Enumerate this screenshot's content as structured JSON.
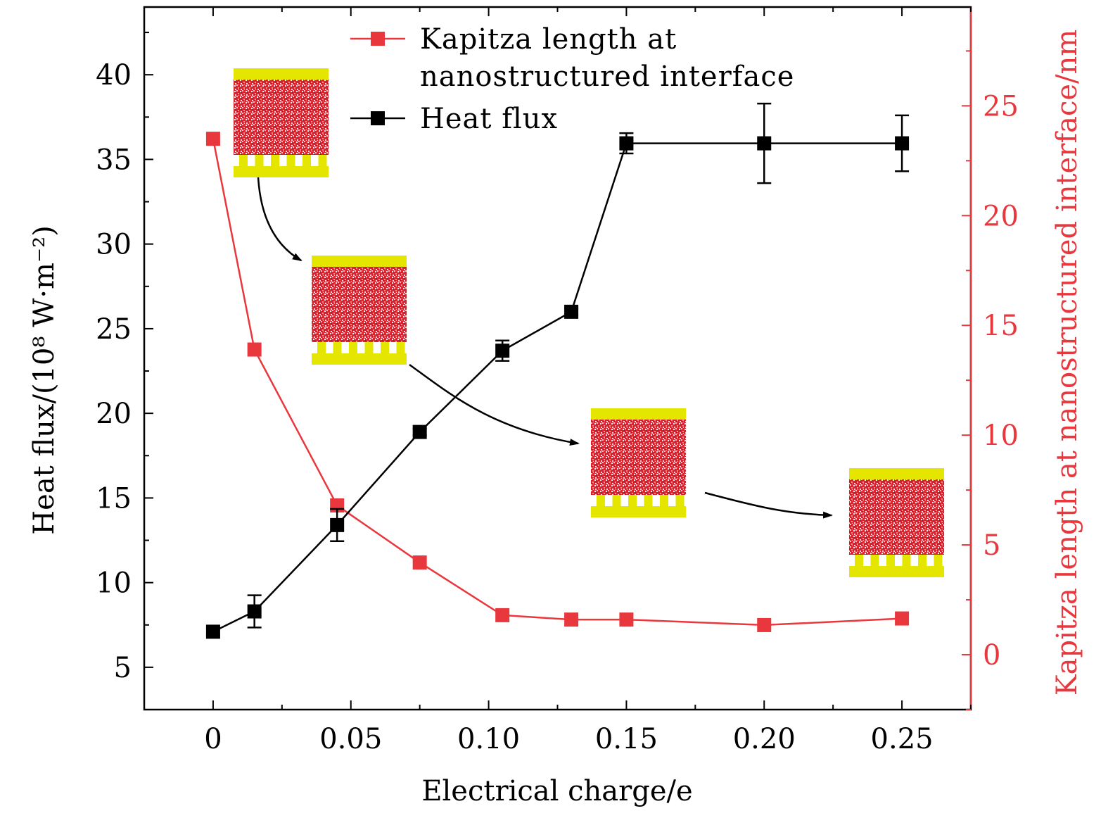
{
  "chart_data": {
    "type": "line",
    "xlabel": "Electrical charge/e",
    "ylabel": "Heat flux/(10⁸ W·m⁻²)",
    "y2label": "Kapitza length at nanostructured interface/nm",
    "xlim": [
      -0.025,
      0.275
    ],
    "ylim": [
      2.5,
      44
    ],
    "y2lim": [
      -2.5,
      29.5
    ],
    "x_ticks": [
      {
        "value": 0,
        "label": "0"
      },
      {
        "value": 0.05,
        "label": "0.05"
      },
      {
        "value": 0.1,
        "label": "0.10"
      },
      {
        "value": 0.15,
        "label": "0.15"
      },
      {
        "value": 0.2,
        "label": "0.20"
      },
      {
        "value": 0.25,
        "label": "0.25"
      }
    ],
    "y_ticks": [
      {
        "value": 5,
        "label": "5"
      },
      {
        "value": 10,
        "label": "10"
      },
      {
        "value": 15,
        "label": "15"
      },
      {
        "value": 20,
        "label": "20"
      },
      {
        "value": 25,
        "label": "25"
      },
      {
        "value": 30,
        "label": "30"
      },
      {
        "value": 35,
        "label": "35"
      },
      {
        "value": 40,
        "label": "40"
      }
    ],
    "y2_ticks": [
      {
        "value": 0,
        "label": "0"
      },
      {
        "value": 5,
        "label": "5"
      },
      {
        "value": 10,
        "label": "10"
      },
      {
        "value": 15,
        "label": "15"
      },
      {
        "value": 20,
        "label": "20"
      },
      {
        "value": 25,
        "label": "25"
      }
    ],
    "legend_position": "top-center",
    "series": [
      {
        "name": "Kapitza length at nanostructured interface",
        "legend_lines": [
          "Kapitza length at",
          "nanostructured interface"
        ],
        "axis": "right",
        "color": "#e8383d",
        "marker": "square",
        "x": [
          0,
          0.015,
          0.045,
          0.075,
          0.105,
          0.13,
          0.15,
          0.2,
          0.25
        ],
        "y": [
          23.5,
          13.9,
          6.8,
          4.2,
          1.8,
          1.6,
          1.6,
          1.35,
          1.65
        ]
      },
      {
        "name": "Heat flux",
        "legend_lines": [
          "Heat flux"
        ],
        "axis": "left",
        "color": "#000000",
        "marker": "square",
        "x": [
          0,
          0.015,
          0.045,
          0.075,
          0.105,
          0.13,
          0.15,
          0.2,
          0.25
        ],
        "y": [
          7.1,
          8.3,
          13.4,
          18.9,
          23.7,
          26.0,
          35.95,
          35.95,
          35.95
        ],
        "error": [
          0.2,
          0.95,
          0.95,
          0.2,
          0.6,
          0.2,
          0.6,
          2.35,
          1.65
        ]
      }
    ],
    "insets": [
      {
        "description": "interface-snapshot",
        "stage": 1
      },
      {
        "description": "interface-snapshot",
        "stage": 2
      },
      {
        "description": "interface-snapshot",
        "stage": 3
      },
      {
        "description": "interface-snapshot",
        "stage": 4
      }
    ]
  }
}
